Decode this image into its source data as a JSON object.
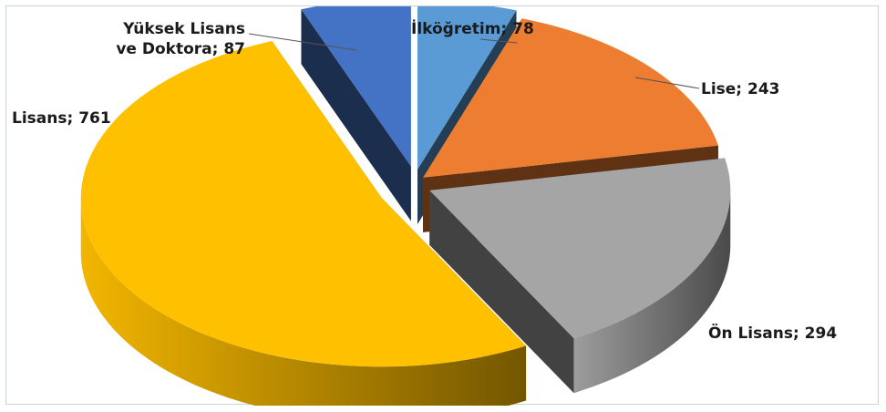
{
  "chart_data": {
    "type": "pie",
    "title": "",
    "exploded": true,
    "three_d": true,
    "slices": [
      {
        "label": "İlköğretim; 78",
        "name": "İlköğretim",
        "value": 78,
        "color": "#5b9bd5"
      },
      {
        "label": "Lise; 243",
        "name": "Lise",
        "value": 243,
        "color": "#ed7d31"
      },
      {
        "label": "Ön Lisans; 294",
        "name": "Ön Lisans",
        "value": 294,
        "color": "#a5a5a5"
      },
      {
        "label": "Lisans; 761",
        "name": "Lisans",
        "value": 761,
        "color": "#ffc000"
      },
      {
        "label": [
          "Yüksek Lisans",
          "ve Doktora; 87"
        ],
        "name": "Yüksek Lisans ve Doktora",
        "value": 87,
        "color": "#4472c4"
      }
    ]
  }
}
